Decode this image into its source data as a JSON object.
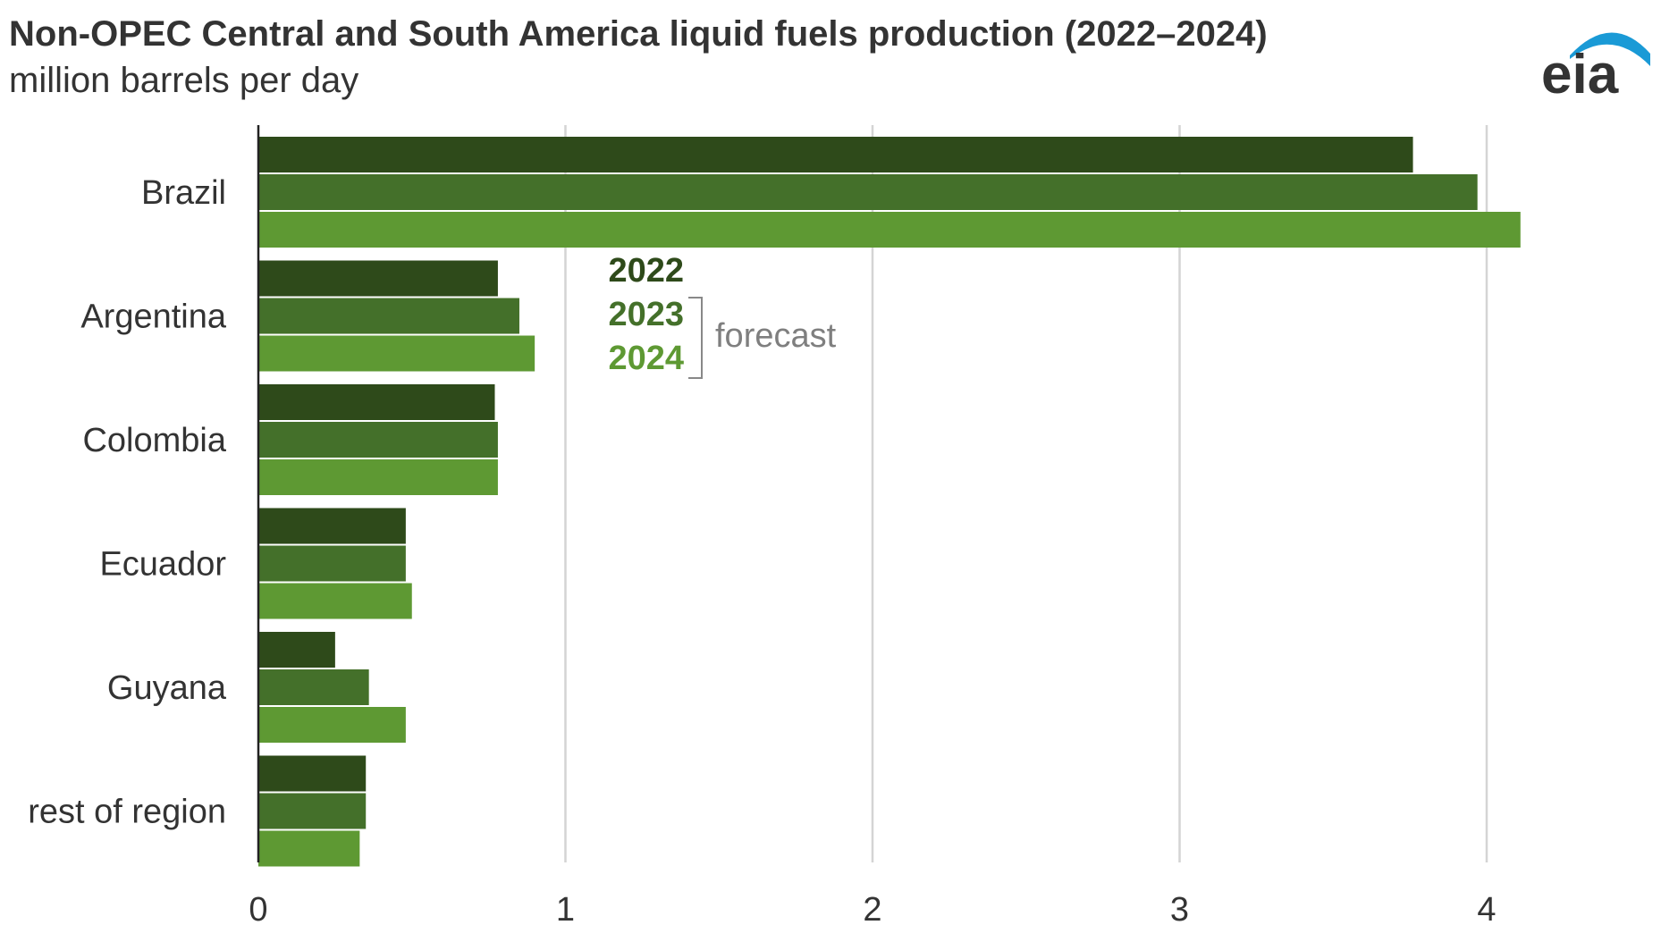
{
  "header": {
    "title": "Non-OPEC Central and South America liquid fuels production (2022–2024)",
    "subtitle": "million barrels per day"
  },
  "logo": {
    "text": "eia",
    "icon": "eia-logo-icon",
    "arc_color": "#1a9ad6",
    "text_color": "#333333"
  },
  "legend": {
    "forecast_label": "forecast",
    "bracket_color": "#888888",
    "forecast_color": "#7f7f7f"
  },
  "chart_data": {
    "type": "bar",
    "orientation": "horizontal",
    "title": "Non-OPEC Central and South America liquid fuels production (2022–2024)",
    "subtitle": "million barrels per day",
    "categories": [
      "Brazil",
      "Argentina",
      "Colombia",
      "Ecuador",
      "Guyana",
      "rest of region"
    ],
    "series": [
      {
        "name": "2022",
        "color": "#2e4a1a",
        "values": [
          3.76,
          0.78,
          0.77,
          0.48,
          0.25,
          0.35
        ]
      },
      {
        "name": "2023",
        "color": "#44702a",
        "values": [
          3.97,
          0.85,
          0.78,
          0.48,
          0.36,
          0.35
        ]
      },
      {
        "name": "2024",
        "color": "#5e9933",
        "values": [
          4.11,
          0.9,
          0.78,
          0.5,
          0.48,
          0.33
        ]
      }
    ],
    "xlim": [
      0,
      4.5
    ],
    "xticks": [
      0,
      1,
      2,
      3,
      4
    ],
    "xtick_labels": [
      "0",
      "1",
      "2",
      "3",
      "4"
    ],
    "grid": "vertical",
    "grid_color": "#d4d4d4",
    "legend_position": "inside-center",
    "xlabel": "",
    "ylabel": ""
  }
}
